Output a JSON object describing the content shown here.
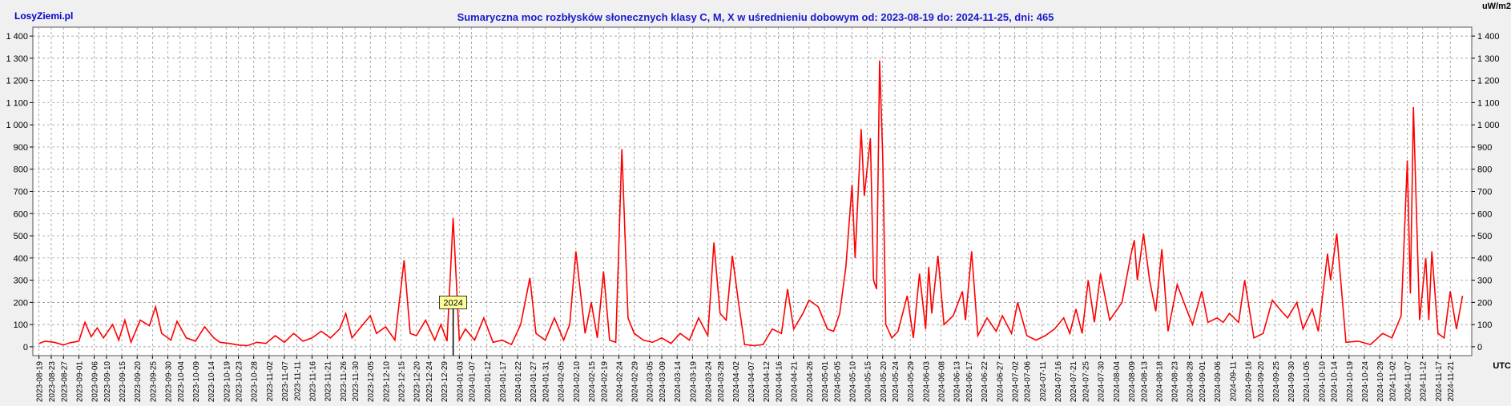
{
  "header": {
    "brand": "LosyZiemi.pl",
    "title": "Sumaryczna moc rozbłysków słonecznych klasy C, M, X w uśrednieniu dobowym od: 2023-08-19 do: 2024-11-25, dni: 465",
    "unit_label": "uW/m2",
    "time_label": "UTC"
  },
  "chart_data": {
    "type": "line",
    "title": "Sumaryczna moc rozbłysków słonecznych klasy C, M, X w uśrednieniu dobowym od: 2023-08-19 do: 2024-11-25, dni: 465",
    "xlabel": "UTC",
    "ylabel": "uW/m2",
    "ylim": [
      -40,
      1440
    ],
    "grid": true,
    "yticks": [
      0,
      100,
      200,
      300,
      400,
      500,
      600,
      700,
      800,
      900,
      1000,
      1100,
      1200,
      1300,
      1400
    ],
    "ytick_labels": [
      "0",
      "100",
      "200",
      "300",
      "400",
      "500",
      "600",
      "700",
      "800",
      "900",
      "1 000",
      "1 100",
      "1 200",
      "1 300",
      "1 400"
    ],
    "xlim": [
      "2023-08-17",
      "2024-11-28"
    ],
    "xtick_labels": [
      "2023-08-19",
      "2023-08-23",
      "2023-08-27",
      "2023-09-01",
      "2023-09-06",
      "2023-09-10",
      "2023-09-15",
      "2023-09-20",
      "2023-09-25",
      "2023-09-30",
      "2023-10-04",
      "2023-10-09",
      "2023-10-14",
      "2023-10-19",
      "2023-10-23",
      "2023-10-28",
      "2023-11-02",
      "2023-11-07",
      "2023-11-11",
      "2023-11-16",
      "2023-11-21",
      "2023-11-26",
      "2023-11-30",
      "2023-12-05",
      "2023-12-10",
      "2023-12-15",
      "2023-12-20",
      "2023-12-24",
      "2023-12-29",
      "2024-01-03",
      "2024-01-07",
      "2024-01-12",
      "2024-01-17",
      "2024-01-22",
      "2024-01-27",
      "2024-01-31",
      "2024-02-05",
      "2024-02-10",
      "2024-02-15",
      "2024-02-19",
      "2024-02-24",
      "2024-02-29",
      "2024-03-05",
      "2024-03-09",
      "2024-03-14",
      "2024-03-19",
      "2024-03-24",
      "2024-03-28",
      "2024-04-02",
      "2024-04-07",
      "2024-04-12",
      "2024-04-16",
      "2024-04-21",
      "2024-04-26",
      "2024-05-01",
      "2024-05-05",
      "2024-05-10",
      "2024-05-15",
      "2024-05-20",
      "2024-05-24",
      "2024-05-29",
      "2024-06-03",
      "2024-06-08",
      "2024-06-13",
      "2024-06-17",
      "2024-06-22",
      "2024-06-27",
      "2024-07-02",
      "2024-07-06",
      "2024-07-11",
      "2024-07-16",
      "2024-07-21",
      "2024-07-25",
      "2024-07-30",
      "2024-08-04",
      "2024-08-09",
      "2024-08-13",
      "2024-08-18",
      "2024-08-23",
      "2024-08-28",
      "2024-09-01",
      "2024-09-06",
      "2024-09-11",
      "2024-09-16",
      "2024-09-20",
      "2024-09-25",
      "2024-09-30",
      "2024-10-05",
      "2024-10-10",
      "2024-10-14",
      "2024-10-19",
      "2024-10-24",
      "2024-10-29",
      "2024-11-02",
      "2024-11-07",
      "2024-11-12",
      "2024-11-17",
      "2024-11-21"
    ],
    "annotations": [
      {
        "text": "2024",
        "x": "2024-01-01",
        "y": 200
      }
    ],
    "series": [
      {
        "color": "#ff0000",
        "points": [
          [
            "2023-08-19",
            15
          ],
          [
            "2023-08-21",
            25
          ],
          [
            "2023-08-24",
            20
          ],
          [
            "2023-08-27",
            8
          ],
          [
            "2023-08-29",
            18
          ],
          [
            "2023-09-01",
            25
          ],
          [
            "2023-09-03",
            110
          ],
          [
            "2023-09-05",
            45
          ],
          [
            "2023-09-07",
            85
          ],
          [
            "2023-09-09",
            40
          ],
          [
            "2023-09-12",
            100
          ],
          [
            "2023-09-14",
            30
          ],
          [
            "2023-09-16",
            120
          ],
          [
            "2023-09-18",
            20
          ],
          [
            "2023-09-21",
            120
          ],
          [
            "2023-09-24",
            95
          ],
          [
            "2023-09-26",
            180
          ],
          [
            "2023-09-28",
            60
          ],
          [
            "2023-10-01",
            30
          ],
          [
            "2023-10-03",
            115
          ],
          [
            "2023-10-06",
            40
          ],
          [
            "2023-10-09",
            25
          ],
          [
            "2023-10-12",
            90
          ],
          [
            "2023-10-15",
            40
          ],
          [
            "2023-10-17",
            20
          ],
          [
            "2023-10-20",
            15
          ],
          [
            "2023-10-23",
            8
          ],
          [
            "2023-10-26",
            5
          ],
          [
            "2023-10-29",
            20
          ],
          [
            "2023-11-01",
            15
          ],
          [
            "2023-11-04",
            50
          ],
          [
            "2023-11-07",
            20
          ],
          [
            "2023-11-10",
            60
          ],
          [
            "2023-11-13",
            25
          ],
          [
            "2023-11-16",
            40
          ],
          [
            "2023-11-19",
            70
          ],
          [
            "2023-11-22",
            40
          ],
          [
            "2023-11-25",
            80
          ],
          [
            "2023-11-27",
            150
          ],
          [
            "2023-11-29",
            40
          ],
          [
            "2023-12-02",
            90
          ],
          [
            "2023-12-05",
            140
          ],
          [
            "2023-12-07",
            60
          ],
          [
            "2023-12-10",
            90
          ],
          [
            "2023-12-13",
            30
          ],
          [
            "2023-12-16",
            390
          ],
          [
            "2023-12-18",
            60
          ],
          [
            "2023-12-20",
            50
          ],
          [
            "2023-12-23",
            120
          ],
          [
            "2023-12-26",
            30
          ],
          [
            "2023-12-28",
            100
          ],
          [
            "2023-12-30",
            25
          ],
          [
            "2024-01-01",
            580
          ],
          [
            "2024-01-03",
            30
          ],
          [
            "2024-01-05",
            80
          ],
          [
            "2024-01-08",
            30
          ],
          [
            "2024-01-11",
            130
          ],
          [
            "2024-01-14",
            20
          ],
          [
            "2024-01-17",
            30
          ],
          [
            "2024-01-20",
            10
          ],
          [
            "2024-01-23",
            100
          ],
          [
            "2024-01-26",
            310
          ],
          [
            "2024-01-28",
            60
          ],
          [
            "2024-01-31",
            30
          ],
          [
            "2024-02-03",
            130
          ],
          [
            "2024-02-06",
            30
          ],
          [
            "2024-02-08",
            100
          ],
          [
            "2024-02-10",
            430
          ],
          [
            "2024-02-13",
            60
          ],
          [
            "2024-02-15",
            200
          ],
          [
            "2024-02-17",
            40
          ],
          [
            "2024-02-19",
            340
          ],
          [
            "2024-02-21",
            30
          ],
          [
            "2024-02-23",
            20
          ],
          [
            "2024-02-25",
            890
          ],
          [
            "2024-02-27",
            130
          ],
          [
            "2024-02-29",
            60
          ],
          [
            "2024-03-03",
            30
          ],
          [
            "2024-03-06",
            20
          ],
          [
            "2024-03-09",
            40
          ],
          [
            "2024-03-12",
            15
          ],
          [
            "2024-03-15",
            60
          ],
          [
            "2024-03-18",
            30
          ],
          [
            "2024-03-21",
            130
          ],
          [
            "2024-03-24",
            50
          ],
          [
            "2024-03-26",
            470
          ],
          [
            "2024-03-28",
            150
          ],
          [
            "2024-03-30",
            120
          ],
          [
            "2024-04-01",
            410
          ],
          [
            "2024-04-03",
            200
          ],
          [
            "2024-04-05",
            10
          ],
          [
            "2024-04-08",
            5
          ],
          [
            "2024-04-11",
            10
          ],
          [
            "2024-04-14",
            80
          ],
          [
            "2024-04-17",
            60
          ],
          [
            "2024-04-19",
            260
          ],
          [
            "2024-04-21",
            80
          ],
          [
            "2024-04-24",
            150
          ],
          [
            "2024-04-26",
            210
          ],
          [
            "2024-04-29",
            180
          ],
          [
            "2024-05-02",
            80
          ],
          [
            "2024-05-04",
            70
          ],
          [
            "2024-05-06",
            150
          ],
          [
            "2024-05-08",
            360
          ],
          [
            "2024-05-10",
            730
          ],
          [
            "2024-05-11",
            400
          ],
          [
            "2024-05-13",
            980
          ],
          [
            "2024-05-14",
            680
          ],
          [
            "2024-05-16",
            940
          ],
          [
            "2024-05-17",
            300
          ],
          [
            "2024-05-18",
            260
          ],
          [
            "2024-05-19",
            1290
          ],
          [
            "2024-05-20",
            860
          ],
          [
            "2024-05-21",
            100
          ],
          [
            "2024-05-23",
            40
          ],
          [
            "2024-05-25",
            70
          ],
          [
            "2024-05-28",
            230
          ],
          [
            "2024-05-30",
            40
          ],
          [
            "2024-06-01",
            330
          ],
          [
            "2024-06-03",
            80
          ],
          [
            "2024-06-04",
            360
          ],
          [
            "2024-06-05",
            150
          ],
          [
            "2024-06-07",
            410
          ],
          [
            "2024-06-09",
            100
          ],
          [
            "2024-06-12",
            140
          ],
          [
            "2024-06-15",
            250
          ],
          [
            "2024-06-16",
            120
          ],
          [
            "2024-06-18",
            430
          ],
          [
            "2024-06-20",
            50
          ],
          [
            "2024-06-23",
            130
          ],
          [
            "2024-06-26",
            70
          ],
          [
            "2024-06-28",
            140
          ],
          [
            "2024-07-01",
            60
          ],
          [
            "2024-07-03",
            200
          ],
          [
            "2024-07-06",
            50
          ],
          [
            "2024-07-09",
            30
          ],
          [
            "2024-07-12",
            50
          ],
          [
            "2024-07-15",
            80
          ],
          [
            "2024-07-18",
            130
          ],
          [
            "2024-07-20",
            60
          ],
          [
            "2024-07-22",
            170
          ],
          [
            "2024-07-24",
            60
          ],
          [
            "2024-07-26",
            300
          ],
          [
            "2024-07-28",
            110
          ],
          [
            "2024-07-30",
            330
          ],
          [
            "2024-08-02",
            120
          ],
          [
            "2024-08-04",
            160
          ],
          [
            "2024-08-06",
            200
          ],
          [
            "2024-08-09",
            420
          ],
          [
            "2024-08-10",
            480
          ],
          [
            "2024-08-11",
            300
          ],
          [
            "2024-08-13",
            510
          ],
          [
            "2024-08-15",
            300
          ],
          [
            "2024-08-17",
            160
          ],
          [
            "2024-08-19",
            440
          ],
          [
            "2024-08-21",
            70
          ],
          [
            "2024-08-24",
            280
          ],
          [
            "2024-08-27",
            170
          ],
          [
            "2024-08-29",
            100
          ],
          [
            "2024-09-01",
            250
          ],
          [
            "2024-09-03",
            110
          ],
          [
            "2024-09-06",
            130
          ],
          [
            "2024-09-08",
            110
          ],
          [
            "2024-09-10",
            150
          ],
          [
            "2024-09-13",
            110
          ],
          [
            "2024-09-15",
            300
          ],
          [
            "2024-09-18",
            40
          ],
          [
            "2024-09-21",
            60
          ],
          [
            "2024-09-24",
            210
          ],
          [
            "2024-09-27",
            160
          ],
          [
            "2024-09-29",
            130
          ],
          [
            "2024-10-02",
            200
          ],
          [
            "2024-10-04",
            80
          ],
          [
            "2024-10-07",
            170
          ],
          [
            "2024-10-09",
            70
          ],
          [
            "2024-10-12",
            420
          ],
          [
            "2024-10-13",
            300
          ],
          [
            "2024-10-15",
            510
          ],
          [
            "2024-10-18",
            20
          ],
          [
            "2024-10-22",
            25
          ],
          [
            "2024-10-26",
            10
          ],
          [
            "2024-10-30",
            60
          ],
          [
            "2024-11-02",
            40
          ],
          [
            "2024-11-05",
            140
          ],
          [
            "2024-11-07",
            840
          ],
          [
            "2024-11-08",
            240
          ],
          [
            "2024-11-09",
            1080
          ],
          [
            "2024-11-11",
            120
          ],
          [
            "2024-11-13",
            400
          ],
          [
            "2024-11-14",
            120
          ],
          [
            "2024-11-15",
            430
          ],
          [
            "2024-11-17",
            60
          ],
          [
            "2024-11-19",
            40
          ],
          [
            "2024-11-21",
            250
          ],
          [
            "2024-11-23",
            80
          ],
          [
            "2024-11-25",
            230
          ]
        ]
      }
    ]
  }
}
